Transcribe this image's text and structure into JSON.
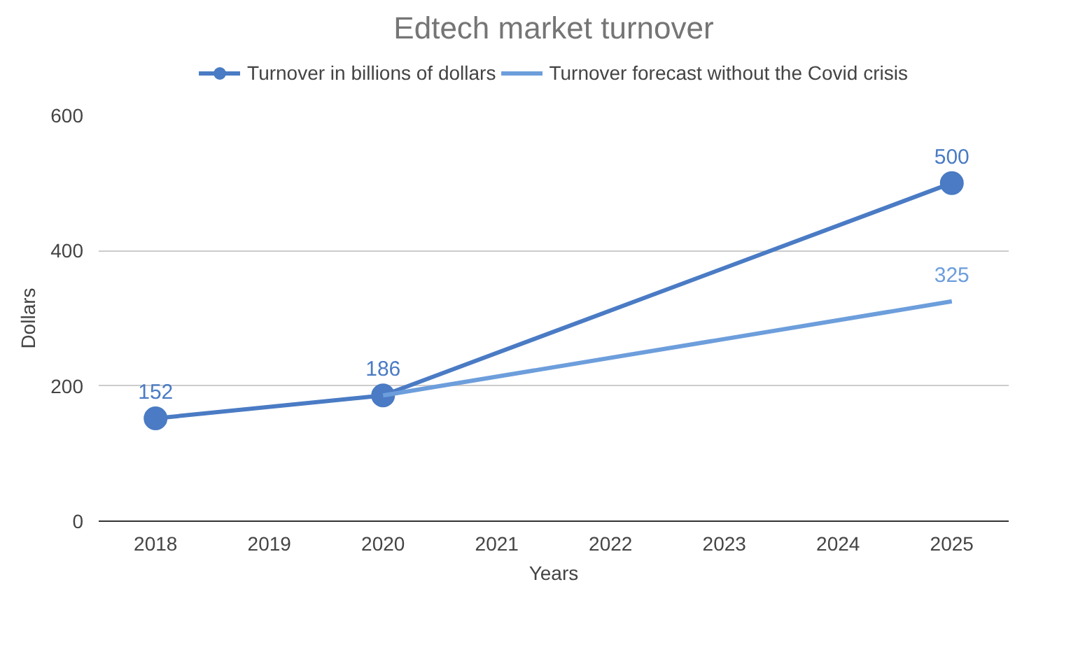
{
  "chart_data": {
    "type": "line",
    "title": "Edtech market turnover",
    "xlabel": "Years",
    "ylabel": "Dollars",
    "xlim": [
      2017.5,
      2025.5
    ],
    "xticks": [
      2018,
      2019,
      2020,
      2021,
      2022,
      2023,
      2024,
      2025
    ],
    "ylim": [
      0,
      600
    ],
    "yticks": [
      0,
      200,
      400,
      600
    ],
    "grid": "y",
    "legend": "top",
    "series": [
      {
        "name": "Turnover in billions of dollars",
        "color": "#4a7bc4",
        "x": [
          2018,
          2020,
          2025
        ],
        "values": [
          152,
          186,
          500
        ],
        "marker": "circle",
        "value_labels": [
          "152",
          "186",
          "500"
        ]
      },
      {
        "name": "Turnover forecast without the Covid crisis",
        "color": "#6d9edc",
        "x": [
          2020,
          2025
        ],
        "values": [
          186,
          325
        ],
        "marker": "none",
        "value_labels": [
          null,
          "325"
        ]
      }
    ]
  }
}
